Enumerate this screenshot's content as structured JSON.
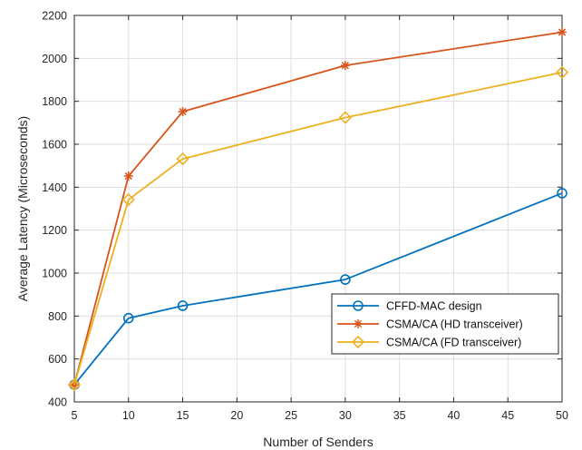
{
  "chart_data": {
    "type": "line",
    "title": "",
    "xlabel": "Number of Senders",
    "ylabel": "Average Latency (Microseconds)",
    "x": [
      5,
      10,
      15,
      30,
      50
    ],
    "xlim": [
      5,
      50
    ],
    "ylim": [
      400,
      2200
    ],
    "xticks": [
      5,
      10,
      15,
      20,
      25,
      30,
      35,
      40,
      45,
      50
    ],
    "yticks": [
      400,
      600,
      800,
      1000,
      1200,
      1400,
      1600,
      1800,
      2000,
      2200
    ],
    "grid": true,
    "legend_position": "bottom-right",
    "series": [
      {
        "name": "CFFD-MAC design",
        "values": [
          480,
          790,
          848,
          970,
          1372
        ],
        "color": "#0072BD",
        "marker": "circle"
      },
      {
        "name": "CSMA/CA (HD transceiver)",
        "values": [
          480,
          1452,
          1752,
          1967,
          2122
        ],
        "color": "#D95319",
        "marker": "asterisk"
      },
      {
        "name": "CSMA/CA (FD transceiver)",
        "values": [
          480,
          1342,
          1532,
          1724,
          1935
        ],
        "color": "#EDB120",
        "marker": "diamond"
      }
    ]
  }
}
